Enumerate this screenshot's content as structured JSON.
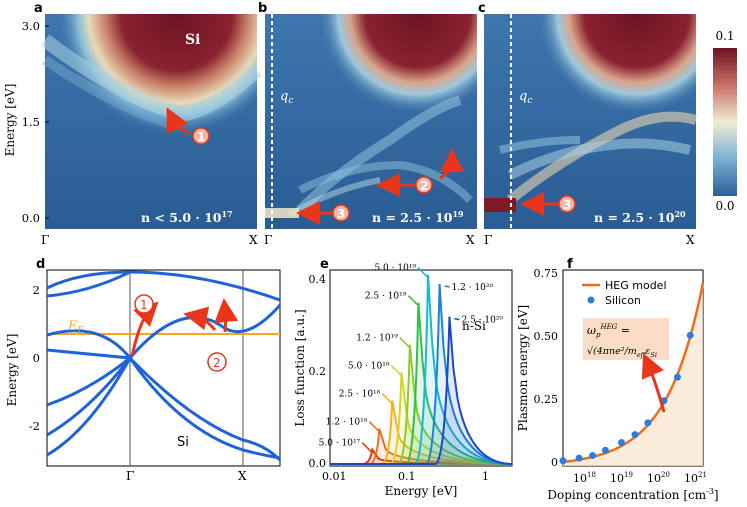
{
  "panels": {
    "a": {
      "label": "a",
      "region_label": "Si",
      "concentration": "n < 5.0 · 10",
      "exp": "17",
      "marker": "1"
    },
    "b": {
      "label": "b",
      "qc": "q",
      "qc_sub": "c",
      "concentration": "n = 2.5 · 10",
      "exp": "19",
      "marker2": "2",
      "marker3": "3"
    },
    "c": {
      "label": "c",
      "qc": "q",
      "qc_sub": "c",
      "concentration": "n = 2.5 · 10",
      "exp": "20",
      "marker3": "3"
    },
    "d": {
      "label": "d",
      "fermi": "E",
      "fermi_sub": "F",
      "material": "Si",
      "marker1": "1",
      "marker2": "2",
      "ylabel": "Energy [eV]",
      "yticks": [
        "2",
        "0",
        "-2"
      ],
      "xticks": [
        "Γ",
        "X"
      ]
    },
    "e": {
      "label": "e",
      "material": "n-Si",
      "ylabel": "Loss function [a.u.]",
      "xlabel": "Energy [eV]",
      "yticks": [
        "0.0",
        "0.2",
        "0.4"
      ],
      "xticks": [
        "0.01",
        "0.1",
        "1"
      ]
    },
    "f": {
      "label": "f",
      "ylabel": "Plasmon energy [eV]",
      "xlabel": "Doping concentration [cm",
      "xlabel_exp": "-3",
      "yticks": [
        "0",
        "0.25",
        "0.50",
        "0.75"
      ],
      "xticks": [
        [
          "10",
          "18"
        ],
        [
          "10",
          "19"
        ],
        [
          "10",
          "20"
        ],
        [
          "10",
          "21"
        ]
      ],
      "legend": {
        "line": "HEG model",
        "dots": "Silicon"
      },
      "formula_lhs": "ω",
      "formula_sup": "HEG",
      "formula_sub": "p",
      "formula_rhs": "√(4πne²/m",
      "formula_rhs_sub": "eff",
      "formula_rhs_end": "ε",
      "formula_rhs_end_sub": "Si"
    }
  },
  "top_axis": {
    "ylabel": "Energy [eV]",
    "yticks": [
      "3.0",
      "1.5",
      "0.0"
    ],
    "gamma": "Γ",
    "x": "X"
  },
  "colorbar": {
    "max": "0.1",
    "min": "0.0"
  },
  "chart_data": [
    {
      "type": "line",
      "panel": "e",
      "xlabel": "Energy [eV]",
      "ylabel": "Loss function [a.u.]",
      "xscale": "log",
      "xlim": [
        0.01,
        3
      ],
      "ylim": [
        0,
        0.42
      ],
      "series": [
        {
          "name": "5.0 · 10¹⁷",
          "peak_x": 0.04,
          "peak_y": 0.035,
          "color": "#e63412"
        },
        {
          "name": "1.2 · 10¹⁸",
          "peak_x": 0.05,
          "peak_y": 0.08,
          "color": "#f26a1b"
        },
        {
          "name": "2.5 · 10¹⁸",
          "peak_x": 0.075,
          "peak_y": 0.14,
          "color": "#f5b01a"
        },
        {
          "name": "5.0 · 10¹⁸",
          "peak_x": 0.1,
          "peak_y": 0.2,
          "color": "#d4d622"
        },
        {
          "name": "1.2 · 10¹⁹",
          "peak_x": 0.13,
          "peak_y": 0.26,
          "color": "#8ccd2b"
        },
        {
          "name": "2.5 · 10¹⁹",
          "peak_x": 0.17,
          "peak_y": 0.35,
          "color": "#30c04a"
        },
        {
          "name": "5.0 · 10¹⁹",
          "peak_x": 0.23,
          "peak_y": 0.41,
          "color": "#19b8d8"
        },
        {
          "name": "1.2 · 10²⁰",
          "peak_x": 0.33,
          "peak_y": 0.39,
          "color": "#1f82d8"
        },
        {
          "name": "2.5 · 10²⁰",
          "peak_x": 0.45,
          "peak_y": 0.32,
          "color": "#1a48c8"
        }
      ]
    },
    {
      "type": "scatter",
      "panel": "f",
      "xlabel": "Doping concentration [cm-3]",
      "ylabel": "Plasmon energy [eV]",
      "xscale": "log",
      "xlim": [
        5e+17,
        1e+21
      ],
      "ylim": [
        0,
        0.75
      ],
      "series": [
        {
          "name": "Silicon",
          "x": [
            5e+17,
            1.2e+18,
            2.5e+18,
            5e+18,
            1.2e+19,
            2.5e+19,
            5e+19,
            1.2e+20,
            2.5e+20,
            5e+20
          ],
          "y": [
            0.02,
            0.03,
            0.04,
            0.06,
            0.09,
            0.12,
            0.165,
            0.25,
            0.34,
            0.5
          ]
        },
        {
          "name": "HEG model",
          "x": [
            5e+17,
            1e+18,
            1e+19,
            1e+20,
            3e+20,
            1e+21
          ],
          "y": [
            0.015,
            0.022,
            0.07,
            0.22,
            0.38,
            0.7
          ]
        }
      ]
    }
  ]
}
